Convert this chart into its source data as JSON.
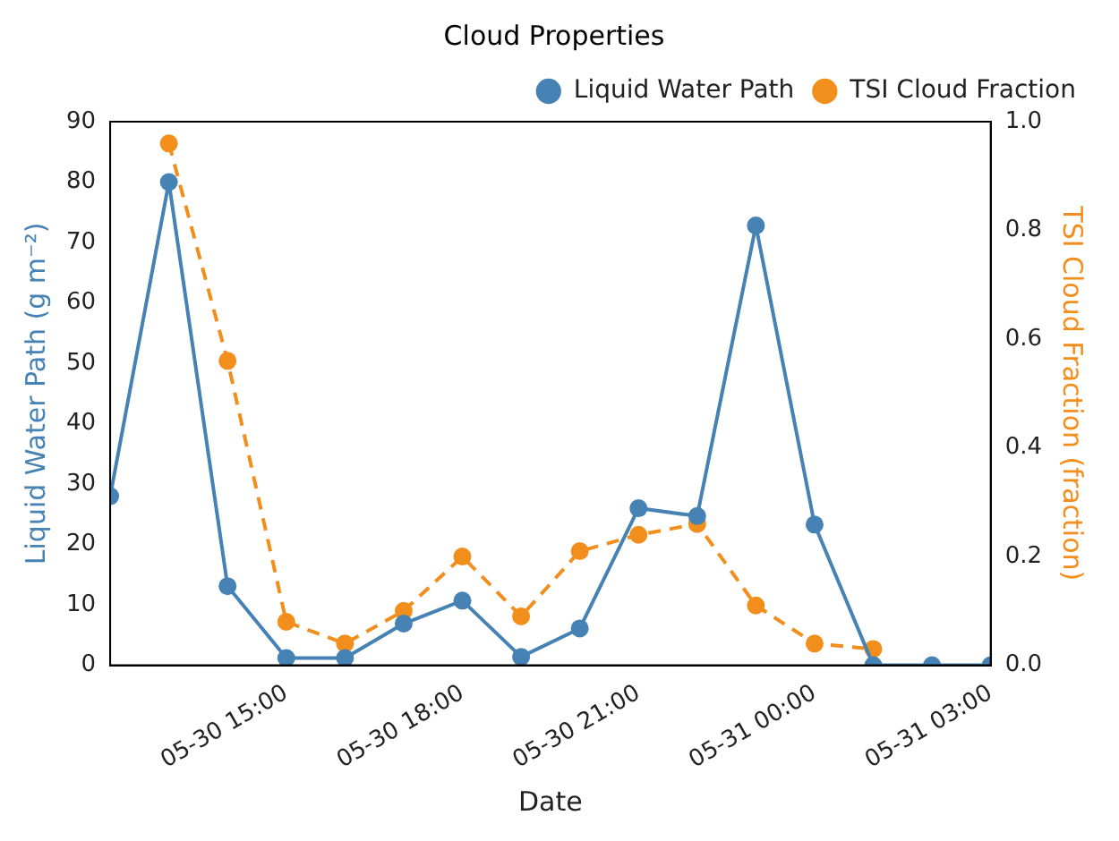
{
  "chart_data": {
    "type": "line",
    "title": "Cloud Properties",
    "xlabel": "Date",
    "ylabel": "Liquid Water Path (g m⁻²)",
    "y2label": "TSI Cloud Fraction (fraction)",
    "x": [
      "--05-30T12:00",
      "--05-30T13:00",
      "--05-30T14:00",
      "--05-30T15:00",
      "--05-30T16:00",
      "--05-30T17:00",
      "--05-30T18:00",
      "--05-30T19:00",
      "--05-30T20:00",
      "--05-30T21:00",
      "--05-30T22:00",
      "--05-30T23:00",
      "--05-31T00:00",
      "--05-31T01:00",
      "--05-31T02:00",
      "--05-31T03:00"
    ],
    "series": [
      {
        "name": "Liquid Water Path",
        "color": "#4682b4",
        "line_style": "solid",
        "values": [
          28,
          80,
          13.1,
          1.2,
          1.2,
          6.9,
          10.7,
          1.4,
          6.1,
          26,
          24.7,
          72.8,
          23.3,
          0,
          0,
          0
        ]
      },
      {
        "name": "TSI Cloud Fraction",
        "color": "#f28e1c",
        "line_style": "dashed",
        "axis": "y2",
        "values": [
          null,
          0.96,
          0.56,
          0.08,
          0.04,
          0.1,
          0.2,
          0.09,
          0.21,
          0.24,
          0.26,
          0.11,
          0.04,
          0.03,
          null,
          null
        ]
      }
    ],
    "xlim": [
      "--05-30T12:00",
      "--05-31T03:00"
    ],
    "xticks": [
      {
        "value": "--05-30T15:00",
        "label": "05-30 15:00"
      },
      {
        "value": "--05-30T18:00",
        "label": "05-30 18:00"
      },
      {
        "value": "--05-30T21:00",
        "label": "05-30 21:00"
      },
      {
        "value": "--05-31T00:00",
        "label": "05-31 00:00"
      },
      {
        "value": "--05-31T03:00",
        "label": "05-31 03:00"
      }
    ],
    "ylim": [
      0,
      90
    ],
    "yticks": [
      0,
      10,
      20,
      30,
      40,
      50,
      60,
      70,
      80,
      90
    ],
    "y2lim": [
      0,
      1
    ],
    "y2ticks": [
      {
        "value": 0,
        "label": "0.0"
      },
      {
        "value": 0.2,
        "label": "0.2"
      },
      {
        "value": 0.4,
        "label": "0.4"
      },
      {
        "value": 0.6,
        "label": "0.6"
      },
      {
        "value": 0.8,
        "label": "0.8"
      },
      {
        "value": 1,
        "label": "1.0"
      }
    ],
    "marker": "circle",
    "grid": false,
    "legend": "top right"
  }
}
